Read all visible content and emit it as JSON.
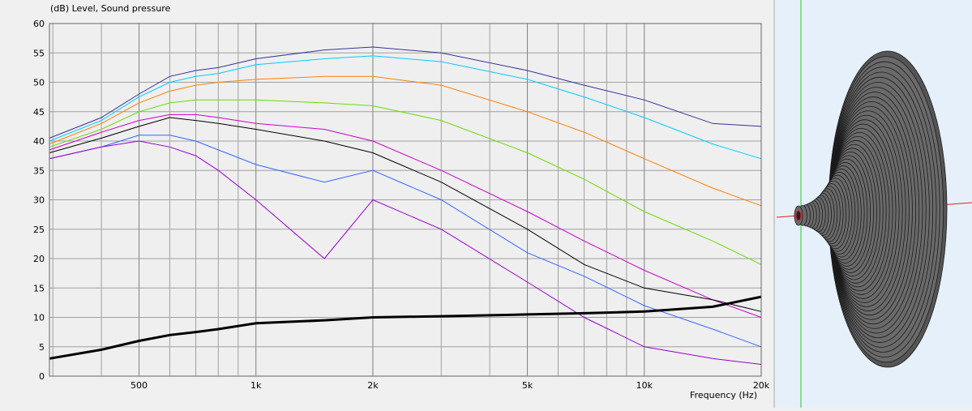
{
  "chart_data": {
    "type": "line",
    "title": "(dB)  Level, Sound pressure",
    "x_label": "Frequency  (Hz)",
    "log_x": true,
    "grid": true,
    "xlim": [
      294,
      20000
    ],
    "xticks": [
      500,
      {
        "value": 1000,
        "label": "1k"
      },
      {
        "value": 2000,
        "label": "2k"
      },
      {
        "value": 5000,
        "label": "5k"
      },
      {
        "value": 10000,
        "label": "10k"
      },
      {
        "value": 20000,
        "label": "20k"
      }
    ],
    "xminor": [
      300,
      400,
      600,
      700,
      800,
      900,
      3000,
      4000,
      6000,
      7000,
      8000,
      9000
    ],
    "ylim": [
      0,
      60
    ],
    "yticks": [
      0,
      5,
      10,
      15,
      20,
      25,
      30,
      35,
      40,
      45,
      50,
      55,
      60
    ],
    "x": [
      294,
      400,
      500,
      600,
      700,
      800,
      1000,
      1500,
      2000,
      3000,
      5000,
      7000,
      10000,
      15000,
      20000
    ],
    "series": [
      {
        "color": "#333399",
        "width": 1,
        "values": [
          40.5,
          44,
          48,
          51,
          52,
          52.5,
          54,
          55.5,
          56,
          55,
          52,
          49.5,
          47,
          43,
          42.5
        ]
      },
      {
        "color": "#00ccff",
        "width": 1,
        "values": [
          40,
          43.5,
          47.5,
          50,
          51,
          51.5,
          53,
          54,
          54.5,
          53.5,
          50.5,
          47.5,
          44,
          39.5,
          37
        ]
      },
      {
        "color": "#ff8000",
        "width": 1,
        "values": [
          39.5,
          43,
          46.5,
          48.5,
          49.5,
          50,
          50.5,
          51,
          51,
          49.5,
          45,
          41.5,
          37,
          32,
          29
        ]
      },
      {
        "color": "#66dd00",
        "width": 1,
        "values": [
          39,
          42,
          45,
          46.5,
          47,
          47,
          47,
          46.5,
          46,
          43.5,
          38,
          33.5,
          28,
          23,
          19
        ]
      },
      {
        "color": "#cc00cc",
        "width": 1,
        "values": [
          38.5,
          41.5,
          43.5,
          44.5,
          44.5,
          44,
          43,
          42,
          40,
          35,
          28,
          23,
          18,
          13,
          10
        ]
      },
      {
        "color": "#000000",
        "width": 1,
        "values": [
          38,
          40.5,
          42.5,
          44,
          43.5,
          43,
          42,
          40,
          38,
          33,
          25,
          19,
          15,
          13,
          11
        ]
      },
      {
        "color": "#3366ff",
        "width": 1,
        "values": [
          37,
          39,
          41,
          41,
          40,
          38.5,
          36,
          33,
          35,
          30,
          21,
          17,
          12,
          8,
          5
        ]
      },
      {
        "color": "#9900cc",
        "width": 1,
        "values": [
          37,
          39,
          40,
          39,
          37.5,
          35,
          30,
          20,
          30,
          25,
          16,
          10,
          5,
          3,
          2
        ]
      },
      {
        "color": "#000000",
        "width": 3,
        "values": [
          3,
          4.5,
          6,
          7,
          7.5,
          8,
          9,
          9.5,
          10,
          10.2,
          10.5,
          10.7,
          11,
          11.8,
          13.5
        ]
      }
    ]
  }
}
